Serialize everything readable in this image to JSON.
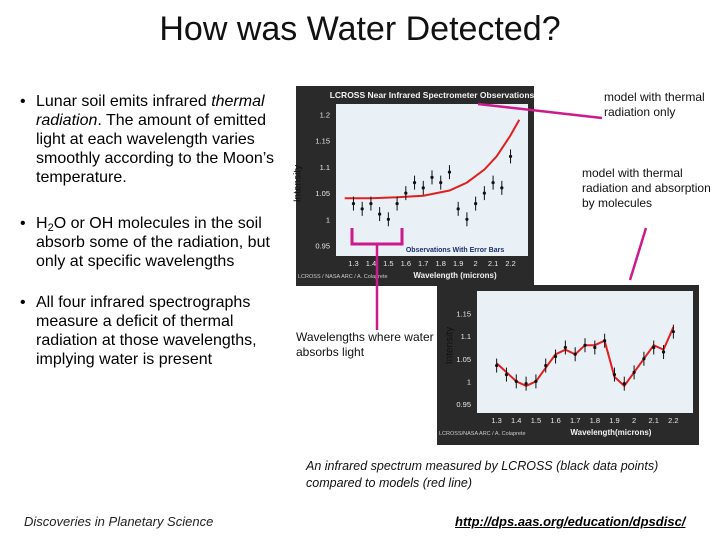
{
  "slide": {
    "title": "How was Water Detected?",
    "bullets": {
      "b1_prefix": "Lunar soil emits infrared ",
      "b1_italic": "thermal radiation",
      "b1_suffix": ".  The amount of emitted light at each wavelength varies smoothly according to the Moon’s temperature.",
      "b2_h": "H",
      "b2_sub": "2",
      "b2_rest": "O or OH molecules in the soil absorb some of the radiation, but only at specific wavelengths",
      "b3": "All four infrared spectrographs measure a deficit of thermal radiation at those wavelengths, implying water is present"
    },
    "annotations": {
      "thermal_only": "model with thermal radiation only",
      "thermal_absorption": "model with thermal radiation and absorption by molecules",
      "water_absorbs": "Wavelengths where water absorbs light"
    },
    "caption": "An infrared spectrum measured by LCROSS (black data points) compared to models (red line)",
    "footer_left": "Discoveries in Planetary Science",
    "footer_link": "http://dps.aas.org/education/dpsdisc/"
  },
  "chart_data": [
    {
      "type": "scatter",
      "title": "LCROSS Near Infrared Spectrometer Observations",
      "subtitle": "Observations With Error Bars",
      "xlabel": "Wavelength (microns)",
      "ylabel": "Intensity",
      "credit": "LCROSS / NASA ARC / A. Colaprete",
      "xlim": [
        1.2,
        2.3
      ],
      "ylim": [
        0.93,
        1.22
      ],
      "xticks": [
        "1.3",
        "1.4",
        "1.5",
        "1.6",
        "1.7",
        "1.8",
        "1.9",
        "2",
        "2.1",
        "2.2"
      ],
      "yticks": [
        "0.95",
        "1",
        "1.05",
        "1.1",
        "1.15",
        "1.2"
      ],
      "series": [
        {
          "kind": "model",
          "color": "#e02020",
          "x": [
            1.25,
            1.4,
            1.55,
            1.7,
            1.85,
            1.95,
            2.05,
            2.12,
            2.2,
            2.25
          ],
          "y": [
            1.04,
            1.04,
            1.042,
            1.045,
            1.055,
            1.07,
            1.095,
            1.12,
            1.16,
            1.19
          ]
        },
        {
          "kind": "data",
          "color": "#101010",
          "x": [
            1.3,
            1.35,
            1.4,
            1.45,
            1.5,
            1.55,
            1.6,
            1.65,
            1.7,
            1.75,
            1.8,
            1.85,
            1.9,
            1.95,
            2.0,
            2.05,
            2.1,
            2.15,
            2.2
          ],
          "y": [
            1.03,
            1.02,
            1.03,
            1.01,
            1.0,
            1.03,
            1.05,
            1.07,
            1.06,
            1.08,
            1.07,
            1.09,
            1.02,
            1.0,
            1.03,
            1.05,
            1.07,
            1.06,
            1.12
          ]
        }
      ]
    },
    {
      "type": "scatter",
      "xlabel": "Wavelength(microns)",
      "ylabel": "Intensity",
      "credit": "LCROSS/NASA ARC / A. Colaprete",
      "xlim": [
        1.2,
        2.3
      ],
      "ylim": [
        0.93,
        1.2
      ],
      "xticks": [
        "1.3",
        "1.4",
        "1.5",
        "1.6",
        "1.7",
        "1.8",
        "1.9",
        "2",
        "2.1",
        "2.2"
      ],
      "yticks": [
        "0.95",
        "1",
        "1.05",
        "1.1",
        "1.15"
      ],
      "series": [
        {
          "kind": "model",
          "color": "#e02020",
          "x": [
            1.3,
            1.35,
            1.4,
            1.45,
            1.5,
            1.55,
            1.6,
            1.65,
            1.7,
            1.75,
            1.8,
            1.85,
            1.9,
            1.95,
            2.0,
            2.05,
            2.1,
            2.15,
            2.2
          ],
          "y": [
            1.04,
            1.02,
            1.0,
            0.99,
            1.0,
            1.03,
            1.06,
            1.07,
            1.06,
            1.08,
            1.08,
            1.09,
            1.01,
            0.99,
            1.02,
            1.05,
            1.08,
            1.07,
            1.12
          ]
        },
        {
          "kind": "data",
          "color": "#101010",
          "x": [
            1.3,
            1.35,
            1.4,
            1.45,
            1.5,
            1.55,
            1.6,
            1.65,
            1.7,
            1.75,
            1.8,
            1.85,
            1.9,
            1.95,
            2.0,
            2.05,
            2.1,
            2.15,
            2.2
          ],
          "y": [
            1.035,
            1.015,
            1.0,
            0.995,
            1.0,
            1.035,
            1.055,
            1.075,
            1.06,
            1.08,
            1.075,
            1.09,
            1.015,
            0.995,
            1.02,
            1.05,
            1.075,
            1.065,
            1.11
          ]
        }
      ]
    }
  ],
  "colors": {
    "panel_bg": "#2a2a2a",
    "plot_bg": "#e9f0f6",
    "pointer": "#cc1a8c",
    "model": "#e02020"
  }
}
